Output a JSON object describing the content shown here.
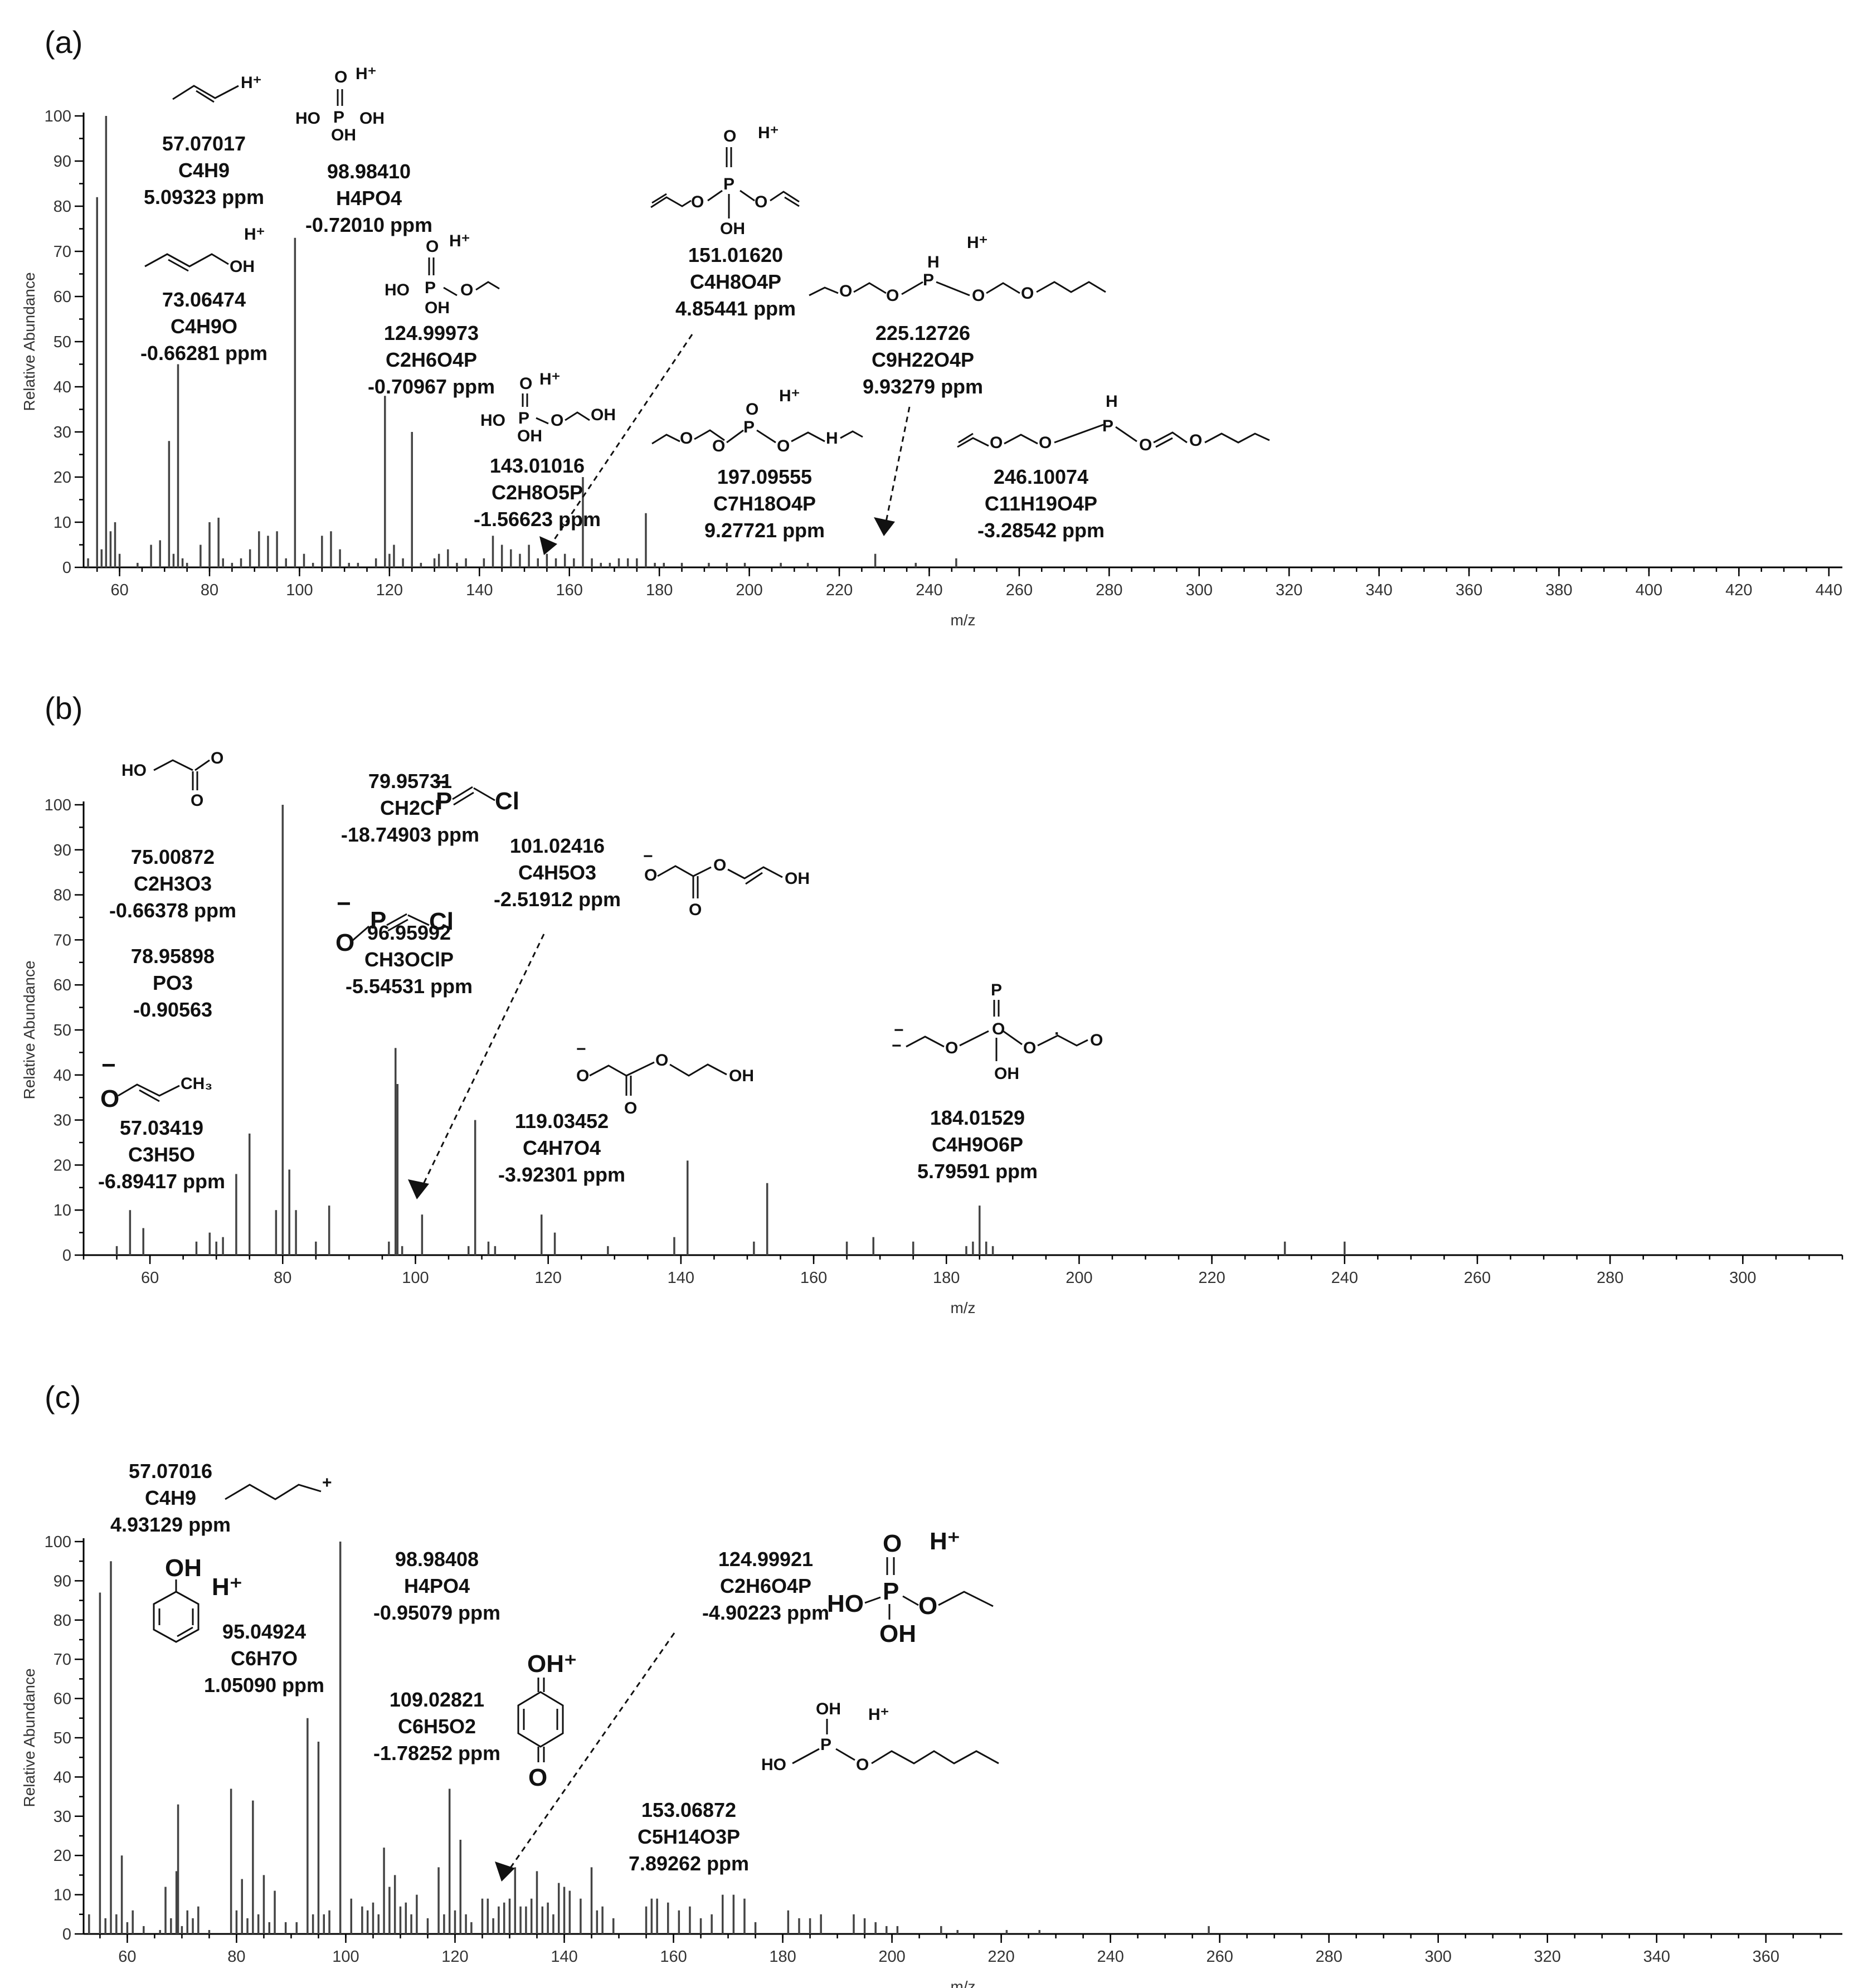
{
  "chart_data": [
    {
      "panel_label": "(a)",
      "type": "bar",
      "xlabel": "m/z",
      "ylabel": "Relative Abundance",
      "xlim": [
        52,
        443
      ],
      "ylim": [
        0,
        100
      ],
      "xticks": [
        60,
        80,
        100,
        120,
        140,
        160,
        180,
        200,
        220,
        240,
        260,
        280,
        300,
        320,
        340,
        360,
        380,
        400,
        420,
        440
      ],
      "yticks": [
        0,
        10,
        20,
        30,
        40,
        50,
        60,
        70,
        80,
        90,
        100
      ],
      "peaks": [
        [
          53,
          2
        ],
        [
          55,
          82
        ],
        [
          56,
          4
        ],
        [
          57,
          100
        ],
        [
          58,
          8
        ],
        [
          59,
          10
        ],
        [
          60,
          3
        ],
        [
          64,
          1
        ],
        [
          67,
          5
        ],
        [
          69,
          6
        ],
        [
          71,
          28
        ],
        [
          72,
          3
        ],
        [
          73,
          45
        ],
        [
          74,
          2
        ],
        [
          75,
          1
        ],
        [
          78,
          5
        ],
        [
          80,
          10
        ],
        [
          82,
          11
        ],
        [
          83,
          2
        ],
        [
          85,
          1
        ],
        [
          87,
          2
        ],
        [
          89,
          4
        ],
        [
          91,
          8
        ],
        [
          93,
          7
        ],
        [
          95,
          8
        ],
        [
          97,
          2
        ],
        [
          99,
          73
        ],
        [
          101,
          3
        ],
        [
          103,
          1
        ],
        [
          105,
          7
        ],
        [
          107,
          8
        ],
        [
          109,
          4
        ],
        [
          111,
          1
        ],
        [
          113,
          1
        ],
        [
          117,
          2
        ],
        [
          119,
          38
        ],
        [
          120,
          3
        ],
        [
          121,
          5
        ],
        [
          123,
          2
        ],
        [
          125,
          30
        ],
        [
          127,
          1
        ],
        [
          130,
          2
        ],
        [
          131,
          3
        ],
        [
          133,
          4
        ],
        [
          135,
          1
        ],
        [
          137,
          2
        ],
        [
          141,
          2
        ],
        [
          143,
          7
        ],
        [
          145,
          5
        ],
        [
          147,
          4
        ],
        [
          149,
          3
        ],
        [
          151,
          5
        ],
        [
          153,
          2
        ],
        [
          155,
          3
        ],
        [
          157,
          2
        ],
        [
          159,
          3
        ],
        [
          161,
          2
        ],
        [
          163,
          20
        ],
        [
          165,
          2
        ],
        [
          167,
          1
        ],
        [
          169,
          1
        ],
        [
          171,
          2
        ],
        [
          173,
          2
        ],
        [
          175,
          2
        ],
        [
          177,
          12
        ],
        [
          179,
          1
        ],
        [
          181,
          1
        ],
        [
          185,
          1
        ],
        [
          191,
          1
        ],
        [
          195,
          1
        ],
        [
          199,
          1
        ],
        [
          207,
          1
        ],
        [
          213,
          1
        ],
        [
          228,
          3
        ],
        [
          237,
          1
        ],
        [
          246,
          2
        ]
      ],
      "annotations": [
        {
          "mz": "57.07017",
          "formula": "C4H9",
          "ppm": "5.09323 ppm"
        },
        {
          "mz": "98.98410",
          "formula": "H4PO4",
          "ppm": "-0.72010 ppm"
        },
        {
          "mz": "73.06474",
          "formula": "C4H9O",
          "ppm": "-0.66281 ppm"
        },
        {
          "mz": "124.99973",
          "formula": "C2H6O4P",
          "ppm": "-0.70967 ppm"
        },
        {
          "mz": "143.01016",
          "formula": "C2H8O5P",
          "ppm": "-1.56623 ppm"
        },
        {
          "mz": "151.01620",
          "formula": "C4H8O4P",
          "ppm": "4.85441 ppm"
        },
        {
          "mz": "197.09555",
          "formula": "C7H18O4P",
          "ppm": "9.27721 ppm"
        },
        {
          "mz": "225.12726",
          "formula": "C9H22O4P",
          "ppm": "9.93279 ppm"
        },
        {
          "mz": "246.10074",
          "formula": "C11H19O4P",
          "ppm": "-3.28542 ppm"
        }
      ],
      "structure_text": [
        "H⁺",
        "H⁺",
        "O",
        "HO",
        "OH",
        "P",
        "OH",
        "H⁺",
        "OH",
        "H⁺",
        "O",
        "HO",
        "P",
        "OH",
        "O",
        "H⁺",
        "O",
        "HO",
        "P",
        "OH",
        "O",
        "OH",
        "O",
        "H⁺",
        "O",
        "P",
        "O",
        "OH",
        "H⁺",
        "O",
        "O",
        "P",
        "O",
        "O",
        "H",
        "H⁺",
        "O",
        "O",
        "P",
        "O",
        "H",
        "O",
        "O",
        "O",
        "P",
        "O",
        "O",
        "H"
      ]
    },
    {
      "panel_label": "(b)",
      "type": "bar",
      "xlabel": "m/z",
      "ylabel": "Relative Abundance",
      "xlim": [
        50,
        315
      ],
      "ylim": [
        0,
        100
      ],
      "xticks": [
        60,
        80,
        100,
        120,
        140,
        160,
        180,
        200,
        220,
        240,
        260,
        280,
        300
      ],
      "yticks": [
        0,
        10,
        20,
        30,
        40,
        50,
        60,
        70,
        80,
        90,
        100
      ],
      "peaks": [
        [
          55,
          2
        ],
        [
          57,
          10
        ],
        [
          59,
          6
        ],
        [
          67,
          3
        ],
        [
          69,
          5
        ],
        [
          70,
          3
        ],
        [
          71,
          4
        ],
        [
          73,
          18
        ],
        [
          75,
          27
        ],
        [
          79,
          10
        ],
        [
          80,
          100
        ],
        [
          81,
          19
        ],
        [
          82,
          10
        ],
        [
          85,
          3
        ],
        [
          87,
          11
        ],
        [
          96,
          3
        ],
        [
          97,
          46
        ],
        [
          97.3,
          38
        ],
        [
          98,
          2
        ],
        [
          101,
          9
        ],
        [
          108,
          2
        ],
        [
          109,
          30
        ],
        [
          111,
          3
        ],
        [
          112,
          2
        ],
        [
          119,
          9
        ],
        [
          121,
          5
        ],
        [
          129,
          2
        ],
        [
          139,
          4
        ],
        [
          141,
          21
        ],
        [
          151,
          3
        ],
        [
          153,
          16
        ],
        [
          165,
          3
        ],
        [
          169,
          4
        ],
        [
          175,
          3
        ],
        [
          183,
          2
        ],
        [
          184,
          3
        ],
        [
          185,
          11
        ],
        [
          186,
          3
        ],
        [
          187,
          2
        ],
        [
          231,
          3
        ],
        [
          240,
          3
        ]
      ],
      "annotations": [
        {
          "mz": "75.00872",
          "formula": "C2H3O3",
          "ppm": "-0.66378 ppm"
        },
        {
          "mz": "78.95898",
          "formula": "PO3",
          "ppm": "-0.90563"
        },
        {
          "mz": "79.95731",
          "formula": "CH2Cl",
          "ppm": "-18.74903 ppm"
        },
        {
          "mz": "101.02416",
          "formula": "C4H5O3",
          "ppm": "-2.51912 ppm"
        },
        {
          "mz": "96.95992",
          "formula": "CH3OClP",
          "ppm": "-5.54531 ppm"
        },
        {
          "mz": "57.03419",
          "formula": "C3H5O",
          "ppm": "-6.89417 ppm"
        },
        {
          "mz": "119.03452",
          "formula": "C4H7O4",
          "ppm": "-3.92301 ppm"
        },
        {
          "mz": "184.01529",
          "formula": "C4H9O6P",
          "ppm": "5.79591 ppm"
        }
      ],
      "structure_text": [
        "HO",
        "O",
        "O",
        "−",
        "P",
        "Cl",
        "−",
        "O",
        "O",
        "O",
        "OH",
        "−",
        "O",
        "P",
        "Cl",
        "−",
        "O",
        "CH₃",
        "−",
        "O",
        "O",
        "O",
        "OH",
        "−",
        "O",
        "O",
        "P",
        "O",
        "O",
        "OH",
        "OH",
        "·",
        "−"
      ]
    },
    {
      "panel_label": "(c)",
      "type": "bar",
      "xlabel": "m/z",
      "ylabel": "Relative Abundance",
      "xlim": [
        52,
        374
      ],
      "ylim": [
        0,
        100
      ],
      "xticks": [
        60,
        80,
        100,
        120,
        140,
        160,
        180,
        200,
        220,
        240,
        260,
        280,
        300,
        320,
        340,
        360
      ],
      "yticks": [
        0,
        10,
        20,
        30,
        40,
        50,
        60,
        70,
        80,
        90,
        100
      ],
      "peaks": [
        [
          53,
          5
        ],
        [
          55,
          87
        ],
        [
          56,
          4
        ],
        [
          57,
          95
        ],
        [
          58,
          5
        ],
        [
          59,
          20
        ],
        [
          60,
          3
        ],
        [
          61,
          6
        ],
        [
          63,
          2
        ],
        [
          66,
          1
        ],
        [
          67,
          12
        ],
        [
          68,
          4
        ],
        [
          69,
          16
        ],
        [
          69.3,
          33
        ],
        [
          70,
          2
        ],
        [
          71,
          6
        ],
        [
          72,
          4
        ],
        [
          73,
          7
        ],
        [
          75,
          1
        ],
        [
          79,
          37
        ],
        [
          80,
          6
        ],
        [
          81,
          14
        ],
        [
          82,
          4
        ],
        [
          83,
          34
        ],
        [
          84,
          5
        ],
        [
          85,
          15
        ],
        [
          86,
          3
        ],
        [
          87,
          11
        ],
        [
          89,
          3
        ],
        [
          91,
          3
        ],
        [
          93,
          55
        ],
        [
          94,
          5
        ],
        [
          95,
          49
        ],
        [
          96,
          5
        ],
        [
          97,
          6
        ],
        [
          99,
          100
        ],
        [
          101,
          9
        ],
        [
          103,
          7
        ],
        [
          104,
          6
        ],
        [
          105,
          8
        ],
        [
          106,
          5
        ],
        [
          107,
          22
        ],
        [
          108,
          12
        ],
        [
          109,
          15
        ],
        [
          110,
          7
        ],
        [
          111,
          8
        ],
        [
          112,
          5
        ],
        [
          113,
          10
        ],
        [
          115,
          4
        ],
        [
          117,
          17
        ],
        [
          118,
          5
        ],
        [
          119,
          37
        ],
        [
          120,
          6
        ],
        [
          121,
          24
        ],
        [
          122,
          5
        ],
        [
          123,
          3
        ],
        [
          125,
          9
        ],
        [
          126,
          9
        ],
        [
          127,
          4
        ],
        [
          128,
          7
        ],
        [
          129,
          8
        ],
        [
          130,
          9
        ],
        [
          131,
          17
        ],
        [
          132,
          7
        ],
        [
          133,
          7
        ],
        [
          134,
          9
        ],
        [
          135,
          16
        ],
        [
          136,
          7
        ],
        [
          137,
          8
        ],
        [
          138,
          5
        ],
        [
          139,
          13
        ],
        [
          140,
          12
        ],
        [
          141,
          11
        ],
        [
          143,
          9
        ],
        [
          145,
          17
        ],
        [
          146,
          6
        ],
        [
          147,
          7
        ],
        [
          149,
          4
        ],
        [
          155,
          7
        ],
        [
          156,
          9
        ],
        [
          157,
          9
        ],
        [
          159,
          8
        ],
        [
          161,
          6
        ],
        [
          163,
          7
        ],
        [
          165,
          4
        ],
        [
          167,
          5
        ],
        [
          169,
          10
        ],
        [
          171,
          10
        ],
        [
          173,
          9
        ],
        [
          175,
          3
        ],
        [
          181,
          6
        ],
        [
          183,
          4
        ],
        [
          185,
          4
        ],
        [
          187,
          5
        ],
        [
          193,
          5
        ],
        [
          195,
          4
        ],
        [
          197,
          3
        ],
        [
          199,
          2
        ],
        [
          201,
          2
        ],
        [
          209,
          2
        ],
        [
          212,
          1
        ],
        [
          221,
          1
        ],
        [
          227,
          1
        ],
        [
          258,
          2
        ]
      ],
      "annotations": [
        {
          "mz": "57.07016",
          "formula": "C4H9",
          "ppm": "4.93129 ppm"
        },
        {
          "mz": "95.04924",
          "formula": "C6H7O",
          "ppm": "1.05090 ppm"
        },
        {
          "mz": "98.98408",
          "formula": "H4PO4",
          "ppm": "-0.95079 ppm"
        },
        {
          "mz": "124.99921",
          "formula": "C2H6O4P",
          "ppm": "-4.90223 ppm"
        },
        {
          "mz": "109.02821",
          "formula": "C6H5O2",
          "ppm": "-1.78252 ppm"
        },
        {
          "mz": "153.06872",
          "formula": "C5H14O3P",
          "ppm": "7.89262 ppm"
        }
      ],
      "structure_text": [
        "+",
        "OH",
        "H⁺",
        "O",
        "H⁺",
        "HO",
        "P",
        "O",
        "OH",
        "OH⁺",
        "O",
        "OH",
        "H⁺",
        "HO",
        "P",
        "O"
      ]
    }
  ]
}
